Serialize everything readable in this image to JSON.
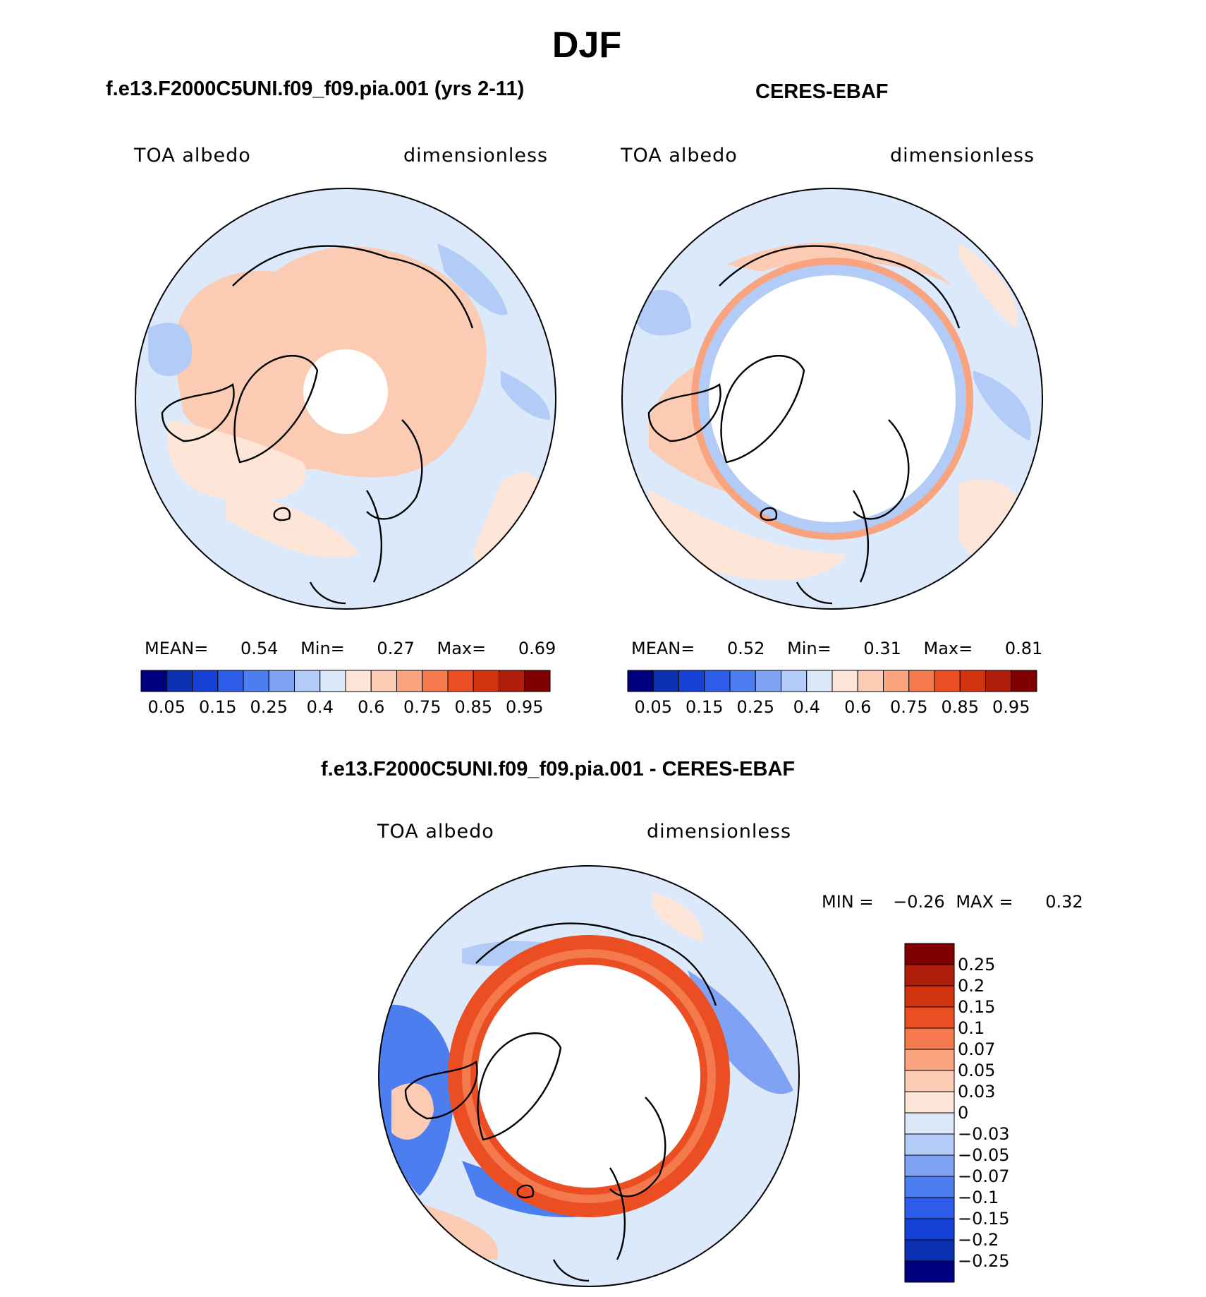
{
  "title": "DJF",
  "colors": {
    "abs_scale": [
      "#00007f",
      "#0a2fb0",
      "#1641d6",
      "#2d5ce8",
      "#4d7ef0",
      "#7fa2f5",
      "#b3ccf7",
      "#dbe9fb",
      "#fde5d7",
      "#fbcbb3",
      "#f9a47f",
      "#f47a4e",
      "#ea4e22",
      "#d1330e",
      "#b01f0c",
      "#800000"
    ],
    "diff_scale": [
      "#800000",
      "#b01f0c",
      "#d1330e",
      "#ea4e22",
      "#f47a4e",
      "#f9a47f",
      "#fbcbb3",
      "#fde5d7",
      "#dbe9fb",
      "#b3ccf7",
      "#7fa2f5",
      "#4d7ef0",
      "#2d5ce8",
      "#1641d6",
      "#0a2fb0",
      "#00007f"
    ]
  },
  "panels": {
    "model": {
      "title": "f.e13.F2000C5UNI.f09_f09.pia.001 (yrs 2-11)",
      "left_label": "TOA albedo",
      "right_label": "dimensionless",
      "stats": {
        "mean_label": "MEAN=",
        "mean": "0.54",
        "min_label": "Min=",
        "min": "0.27",
        "max_label": "Max=",
        "max": "0.69"
      },
      "tick_labels": [
        "0.05",
        "0.15",
        "0.25",
        "0.4",
        "0.6",
        "0.75",
        "0.85",
        "0.95"
      ]
    },
    "obs": {
      "title": "CERES-EBAF",
      "left_label": "TOA albedo",
      "right_label": "dimensionless",
      "stats": {
        "mean_label": "MEAN=",
        "mean": "0.52",
        "min_label": "Min=",
        "min": "0.31",
        "max_label": "Max=",
        "max": "0.81"
      },
      "tick_labels": [
        "0.05",
        "0.15",
        "0.25",
        "0.4",
        "0.6",
        "0.75",
        "0.85",
        "0.95"
      ]
    },
    "diff": {
      "title": "f.e13.F2000C5UNI.f09_f09.pia.001 - CERES-EBAF",
      "left_label": "TOA albedo",
      "right_label": "dimensionless",
      "minmax": {
        "min_label": "MIN =",
        "min": "−0.26",
        "max_label": "MAX =",
        "max": "0.32"
      },
      "tick_labels": [
        "0.25",
        "0.2",
        "0.15",
        "0.1",
        "0.07",
        "0.05",
        "0.03",
        "0",
        "−0.03",
        "−0.05",
        "−0.07",
        "−0.1",
        "−0.15",
        "−0.2",
        "−0.25"
      ]
    }
  }
}
